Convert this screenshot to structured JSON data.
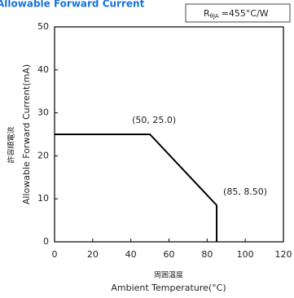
{
  "chart_data": {
    "type": "line",
    "title": "Allowable Forward Current",
    "resistance_box": {
      "symbol": "R",
      "subscript": "θJA",
      "text": "=455°C/W"
    },
    "x_label_jp": "周囲温度",
    "x_label": "Ambient Temperature(°C)",
    "y_label_jp": "許容順電流",
    "y_label": "Allowable Forward Current(mA)",
    "x": [
      0,
      50,
      85,
      85
    ],
    "series": [
      {
        "color": "#000000",
        "values": [
          25,
          25,
          8.5,
          0
        ]
      }
    ],
    "annotations": [
      {
        "text": "(50, 25.0)",
        "x": 50,
        "y": 25
      },
      {
        "text": "(85, 8.50)",
        "x": 85,
        "y": 8.5
      }
    ],
    "xlim": [
      0,
      120
    ],
    "xticks": [
      0,
      20,
      40,
      60,
      80,
      100,
      120
    ],
    "ylim": [
      0,
      50
    ],
    "yticks": [
      0,
      10,
      20,
      30,
      40,
      50
    ],
    "grid": false
  }
}
